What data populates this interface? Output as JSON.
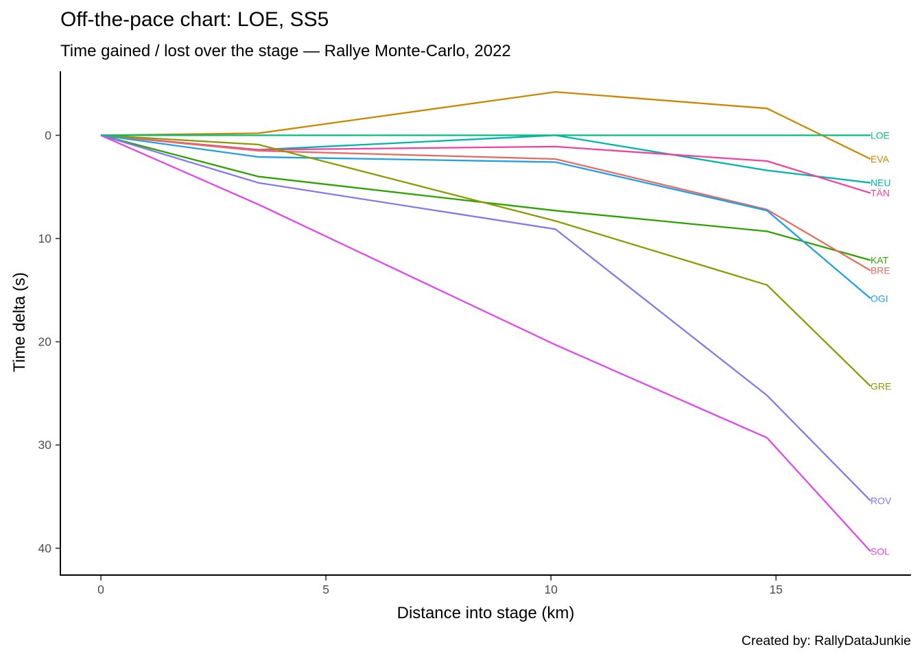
{
  "chart_data": {
    "type": "line",
    "title": "Off-the-pace chart: LOE, SS5",
    "subtitle": "Time gained / lost over the stage — Rallye Monte-Carlo, 2022",
    "xlabel": "Distance into stage (km)",
    "ylabel": "Time delta (s)",
    "caption": "Created by: RallyDataJunkie",
    "xlim": [
      -0.9,
      18.0
    ],
    "ylim": [
      -6.2,
      42.6
    ],
    "y_reversed": true,
    "x_ticks": [
      0,
      5,
      10,
      15
    ],
    "y_ticks": [
      0,
      10,
      20,
      30,
      40
    ],
    "grid": false,
    "legend": "none",
    "x": [
      0,
      3.5,
      10.1,
      14.8,
      17.1
    ],
    "series": [
      {
        "name": "LOE",
        "color": "#00BF7D",
        "values": [
          0,
          0,
          0,
          0,
          0
        ]
      },
      {
        "name": "EVA",
        "color": "#CD8500",
        "values": [
          0,
          -0.2,
          -4.2,
          -2.6,
          2.3
        ]
      },
      {
        "name": "NEU",
        "color": "#00B4B0",
        "values": [
          0,
          1.4,
          0,
          3.4,
          4.6
        ]
      },
      {
        "name": "TÄN",
        "color": "#F040A0",
        "values": [
          0,
          1.4,
          1.1,
          2.5,
          5.6
        ]
      },
      {
        "name": "KAT",
        "color": "#2CA200",
        "values": [
          0,
          4.0,
          7.3,
          9.3,
          12.1
        ]
      },
      {
        "name": "BRE",
        "color": "#E76C5F",
        "values": [
          0,
          1.5,
          2.3,
          7.2,
          13.1
        ]
      },
      {
        "name": "OGI",
        "color": "#1EA0E8",
        "values": [
          0,
          2.1,
          2.6,
          7.3,
          15.8
        ]
      },
      {
        "name": "GRE",
        "color": "#8C9A00",
        "values": [
          0,
          0.9,
          8.3,
          14.5,
          24.3
        ]
      },
      {
        "name": "ROV",
        "color": "#8078F0",
        "values": [
          0,
          4.6,
          9.1,
          25.2,
          35.4
        ]
      },
      {
        "name": "SOL",
        "color": "#E045EE",
        "values": [
          0,
          6.7,
          20.3,
          29.3,
          40.3
        ]
      }
    ]
  }
}
